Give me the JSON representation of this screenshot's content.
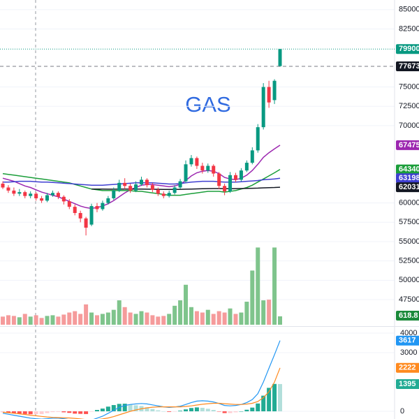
{
  "chart_data": {
    "type": "candlestick",
    "title": "GAS",
    "ylim": [
      44250,
      86250
    ],
    "yticks": [
      85000,
      82500,
      75000,
      72500,
      70000,
      60000,
      57500,
      55000,
      52500,
      50000,
      47500
    ],
    "grid": true,
    "up_color": "#089981",
    "down_color": "#f23645",
    "candles": {
      "open": [
        62500,
        62000,
        61600,
        61200,
        61400,
        60900,
        61200,
        60600,
        60300,
        61000,
        61300,
        60800,
        60200,
        59500,
        58700,
        58000,
        57200,
        59600,
        59200,
        60000,
        60600,
        61600,
        62600,
        62200,
        61600,
        62400,
        63000,
        62300,
        61700,
        61200,
        60900,
        61300,
        62000,
        62800,
        65000,
        65800,
        64800,
        64200,
        64800,
        63800,
        62200,
        61500,
        63600,
        63000,
        64200,
        65200,
        66800,
        69800,
        75000,
        73300,
        77700
      ],
      "high": [
        62800,
        62300,
        62000,
        61800,
        61600,
        61500,
        61400,
        60900,
        61300,
        61600,
        61500,
        61000,
        60500,
        59800,
        59000,
        58200,
        59900,
        60000,
        60300,
        60900,
        62000,
        63000,
        63200,
        62500,
        62800,
        63400,
        63200,
        62600,
        62000,
        61500,
        61600,
        62300,
        63100,
        65500,
        66200,
        66000,
        65200,
        65100,
        65000,
        64000,
        62500,
        64000,
        63900,
        64500,
        65500,
        67200,
        70200,
        75500,
        75800,
        76000,
        79900
      ],
      "low": [
        61800,
        61300,
        60900,
        60900,
        60600,
        60600,
        60300,
        60000,
        60100,
        60800,
        60500,
        59800,
        59200,
        58400,
        57500,
        55800,
        57000,
        58800,
        59000,
        59800,
        60400,
        61400,
        61800,
        61300,
        61400,
        62200,
        62000,
        61400,
        60900,
        60600,
        60700,
        61100,
        61800,
        62600,
        64700,
        64400,
        63800,
        63900,
        63400,
        61800,
        61000,
        61300,
        62700,
        62800,
        64000,
        65000,
        66500,
        69500,
        72300,
        72800,
        77600
      ],
      "close": [
        62000,
        61600,
        61200,
        61400,
        60900,
        61200,
        60600,
        60300,
        61000,
        61300,
        60800,
        60200,
        59500,
        58700,
        58000,
        56800,
        59600,
        59200,
        60000,
        60600,
        61600,
        62600,
        62200,
        61600,
        62400,
        63000,
        62300,
        61700,
        61200,
        60900,
        61300,
        62000,
        62800,
        65000,
        65800,
        64800,
        64200,
        64800,
        63800,
        62200,
        61500,
        63600,
        63000,
        64200,
        65200,
        66800,
        69800,
        75000,
        73000,
        75800,
        79900
      ]
    },
    "last_price_color": "#089981",
    "price_line": 77673,
    "price_line_color": "#131722",
    "moving_averages": [
      {
        "color": "#9c27b0",
        "values": [
          63200,
          63000,
          62800,
          62500,
          62200,
          62000,
          61700,
          61400,
          61200,
          61000,
          60800,
          60500,
          60200,
          59900,
          59600,
          59400,
          59300,
          59400,
          59600,
          59900,
          60300,
          60800,
          61300,
          61700,
          62000,
          62300,
          62400,
          62400,
          62300,
          62200,
          62100,
          62200,
          62400,
          62900,
          63500,
          63900,
          64100,
          64200,
          64100,
          63800,
          63300,
          63100,
          63000,
          63200,
          63600,
          64200,
          65000,
          65900,
          66500,
          67000,
          67475
        ]
      },
      {
        "color": "#1b9e3a",
        "values": [
          63800,
          63700,
          63600,
          63500,
          63400,
          63300,
          63200,
          63100,
          63000,
          62900,
          62800,
          62700,
          62600,
          62400,
          62200,
          62000,
          61800,
          61700,
          61600,
          61600,
          61600,
          61600,
          61600,
          61600,
          61500,
          61500,
          61400,
          61300,
          61200,
          61100,
          61000,
          61000,
          61000,
          61100,
          61200,
          61300,
          61400,
          61500,
          61500,
          61500,
          61400,
          61500,
          61600,
          61800,
          62000,
          62300,
          62700,
          63100,
          63500,
          63900,
          64340
        ]
      },
      {
        "color": "#3f3fd1",
        "values": [
          62700,
          62700,
          62750,
          62800,
          62800,
          62800,
          62750,
          62700,
          62700,
          62650,
          62600,
          62550,
          62500,
          62450,
          62400,
          62350,
          62300,
          62300,
          62300,
          62350,
          62400,
          62450,
          62500,
          62550,
          62600,
          62600,
          62600,
          62600,
          62550,
          62500,
          62450,
          62450,
          62500,
          62600,
          62700,
          62750,
          62800,
          62800,
          62800,
          62750,
          62700,
          62700,
          62700,
          62750,
          62800,
          62850,
          62900,
          63000,
          63050,
          63100,
          63198
        ]
      },
      {
        "color": "#131722",
        "values": [
          null,
          null,
          null,
          null,
          null,
          null,
          null,
          null,
          null,
          null,
          null,
          null,
          null,
          null,
          null,
          null,
          61800,
          61800,
          61790,
          61780,
          61780,
          61790,
          61800,
          61800,
          61800,
          61790,
          61780,
          61770,
          61760,
          61750,
          61750,
          61750,
          61760,
          61780,
          61800,
          61820,
          61840,
          61850,
          61860,
          61860,
          61850,
          61840,
          61850,
          61860,
          61880,
          61900,
          61920,
          61950,
          61980,
          62000,
          62031
        ]
      }
    ],
    "volume": {
      "up_color": "#7fc48c",
      "down_color": "#f59b9b",
      "label_color": "#1b8a3a",
      "values": [
        600,
        700,
        650,
        550,
        800,
        600,
        700,
        500,
        650,
        700,
        600,
        750,
        900,
        1000,
        800,
        1500,
        900,
        700,
        800,
        900,
        1100,
        1800,
        1300,
        900,
        800,
        1000,
        900,
        700,
        600,
        650,
        800,
        1400,
        1800,
        2950,
        1300,
        1000,
        900,
        1100,
        800,
        1000,
        900,
        1200,
        800,
        900,
        1700,
        4000,
        5700,
        1800,
        1850,
        5700,
        618.8
      ]
    },
    "macd": {
      "ylim": [
        -393,
        4250
      ],
      "yticks": [
        4000,
        3000,
        0
      ],
      "line": {
        "color": "#2196f3",
        "values": [
          -100,
          -150,
          -200,
          -250,
          -300,
          -350,
          -380,
          -400,
          -380,
          -350,
          -350,
          -380,
          -420,
          -480,
          -520,
          -560,
          -450,
          -350,
          -250,
          -100,
          50,
          200,
          300,
          350,
          380,
          400,
          380,
          330,
          280,
          230,
          200,
          220,
          260,
          350,
          450,
          520,
          540,
          520,
          480,
          400,
          300,
          280,
          300,
          350,
          450,
          600,
          900,
          1500,
          2200,
          2900,
          3617
        ]
      },
      "signal": {
        "color": "#ff8a1f",
        "values": [
          -50,
          -70,
          -100,
          -130,
          -160,
          -200,
          -230,
          -260,
          -290,
          -310,
          -320,
          -330,
          -340,
          -360,
          -390,
          -420,
          -430,
          -420,
          -390,
          -340,
          -270,
          -180,
          -90,
          0,
          70,
          130,
          180,
          210,
          230,
          230,
          230,
          230,
          230,
          250,
          280,
          320,
          360,
          390,
          410,
          410,
          390,
          370,
          350,
          350,
          370,
          410,
          500,
          700,
          1000,
          1500,
          2222
        ]
      },
      "histogram": {
        "color": "#22ab94",
        "values": [
          -50,
          -80,
          -100,
          -120,
          -140,
          -150,
          -150,
          -140,
          -90,
          -40,
          -30,
          -50,
          -80,
          -120,
          -130,
          -140,
          -20,
          70,
          140,
          240,
          320,
          380,
          390,
          350,
          310,
          270,
          200,
          120,
          50,
          0,
          -30,
          -10,
          30,
          100,
          170,
          200,
          180,
          130,
          70,
          -10,
          -90,
          -90,
          -50,
          0,
          80,
          190,
          400,
          800,
          1200,
          1400,
          1395
        ]
      }
    }
  }
}
